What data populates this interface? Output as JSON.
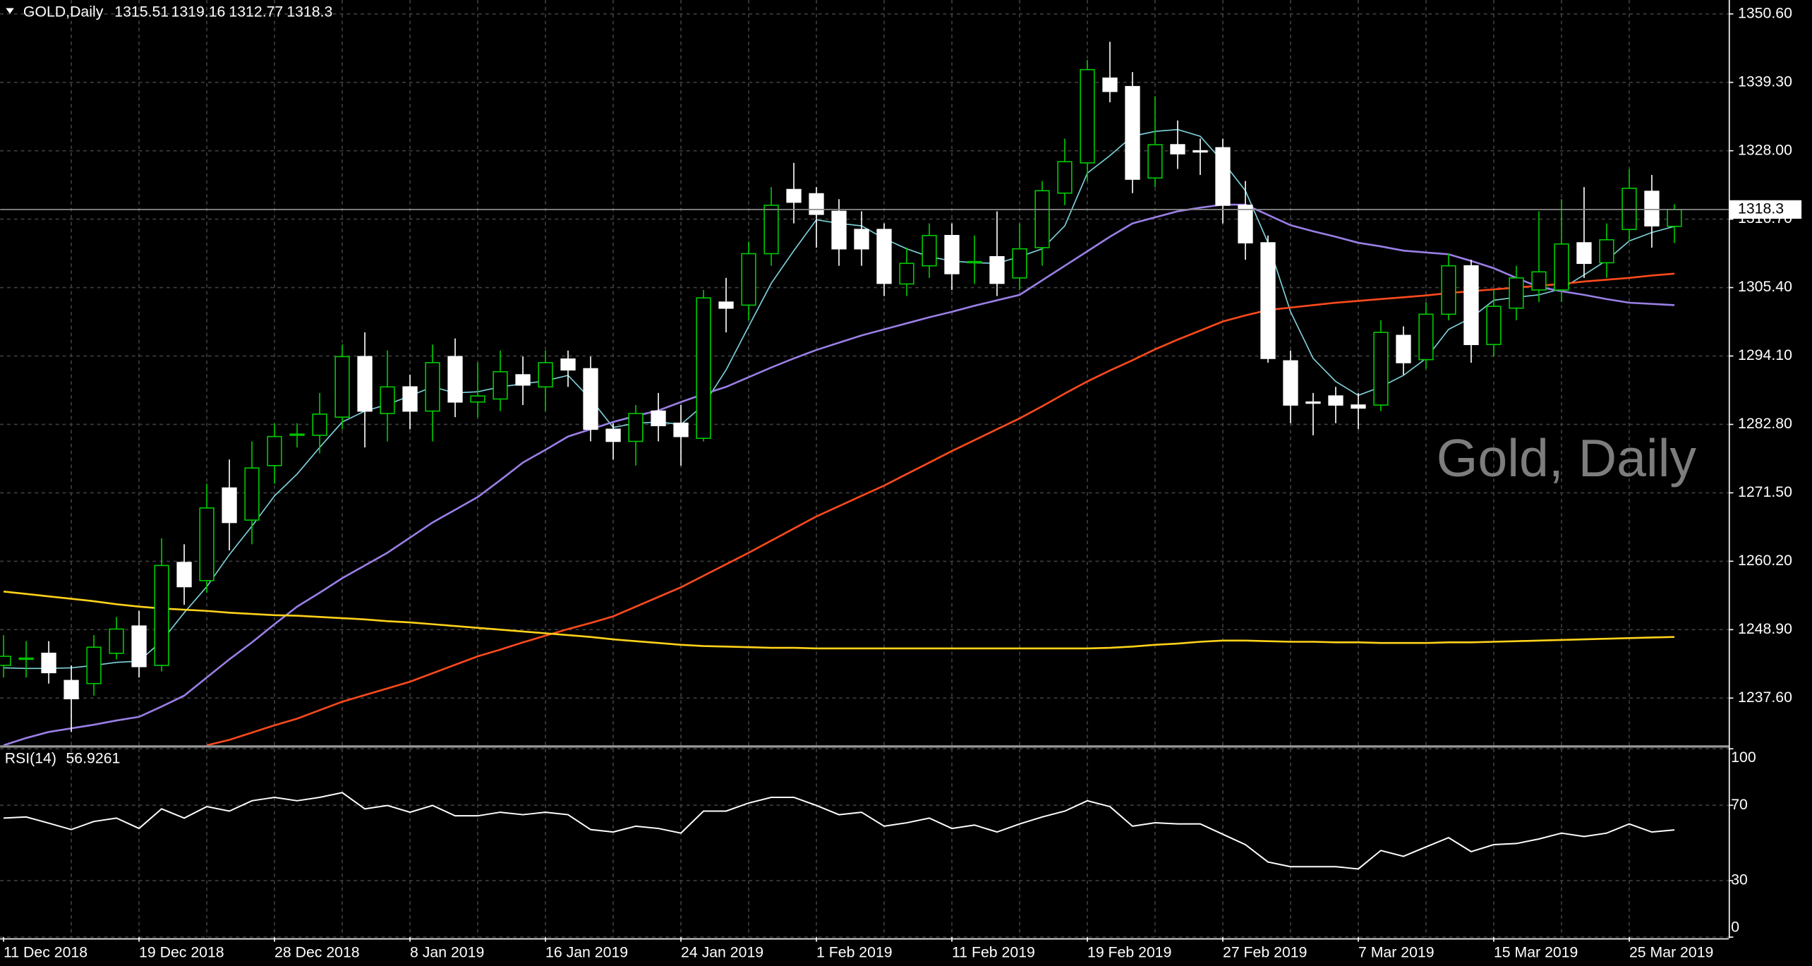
{
  "chart_data": {
    "type": "candlestick",
    "title": "GOLD,Daily",
    "watermark": "Gold, Daily",
    "categories": [
      "11 Dec 2018",
      null,
      null,
      null,
      null,
      null,
      "19 Dec 2018",
      null,
      null,
      null,
      null,
      null,
      "28 Dec 2018",
      null,
      null,
      null,
      null,
      null,
      "8 Jan 2019",
      null,
      null,
      null,
      null,
      null,
      "16 Jan 2019",
      null,
      null,
      null,
      null,
      null,
      "24 Jan 2019",
      null,
      null,
      null,
      null,
      null,
      "1 Feb 2019",
      null,
      null,
      null,
      null,
      null,
      "11 Feb 2019",
      null,
      null,
      null,
      null,
      null,
      "19 Feb 2019",
      null,
      null,
      null,
      null,
      null,
      "27 Feb 2019",
      null,
      null,
      null,
      null,
      null,
      "7 Mar 2019",
      null,
      null,
      null,
      null,
      null,
      "15 Mar 2019",
      null,
      null,
      null,
      null,
      null,
      "25 Mar 2019",
      null,
      null
    ],
    "open": [
      1243,
      1244,
      1245,
      1240.5,
      1240,
      1245,
      1249.5,
      1243,
      1260,
      1257,
      1272.3,
      1267,
      1276,
      1281,
      1281,
      1284,
      1294,
      1284.6,
      1289,
      1285,
      1294,
      1286.5,
      1287,
      1291,
      1289,
      1293.6,
      1292,
      1282,
      1280,
      1285,
      1283,
      1280.5,
      1303,
      1302.5,
      1311,
      1321.6,
      1320.9,
      1318,
      1315,
      1315,
      1306,
      1309,
      1314,
      1309.5,
      1310.5,
      1307,
      1312,
      1321,
      1326,
      1340,
      1338.6,
      1323.5,
      1329,
      1328,
      1328.5,
      1319,
      1312.8,
      1293.3,
      1286.5,
      1287.5,
      1286,
      1286,
      1297.5,
      1293.5,
      1301,
      1309,
      1296,
      1302,
      1305,
      1305,
      1312.8,
      1309.5,
      1315,
      1321.3,
      1315.51
    ],
    "high": [
      1248,
      1247,
      1247,
      1243,
      1248,
      1251,
      1252,
      1264,
      1263,
      1273,
      1277,
      1280,
      1283,
      1283,
      1288,
      1296,
      1298,
      1295,
      1291,
      1296,
      1297,
      1293,
      1295,
      1294,
      1295,
      1295,
      1294,
      1283,
      1286,
      1288,
      1286,
      1305,
      1307,
      1313,
      1322,
      1326,
      1322,
      1320,
      1318,
      1316,
      1312,
      1316,
      1316,
      1314,
      1318,
      1316,
      1323,
      1330,
      1343,
      1346,
      1341,
      1337,
      1333,
      1330,
      1330,
      1323,
      1314,
      1295,
      1288,
      1289,
      1288,
      1300,
      1299,
      1303,
      1311,
      1310,
      1305,
      1309,
      1318,
      1320,
      1322,
      1316,
      1325,
      1324,
      1319.16
    ],
    "low": [
      1241,
      1241,
      1240,
      1232,
      1238,
      1244,
      1241,
      1242,
      1253,
      1255,
      1262,
      1263,
      1273,
      1279,
      1278,
      1282,
      1279,
      1280,
      1282,
      1280,
      1284,
      1284,
      1285,
      1286,
      1285,
      1289,
      1280,
      1277,
      1276,
      1280,
      1276,
      1280,
      1298,
      1300,
      1309,
      1316,
      1312,
      1309,
      1309,
      1304,
      1304,
      1307,
      1305,
      1306,
      1304,
      1305,
      1309,
      1319,
      1323,
      1336,
      1321,
      1322,
      1325,
      1324,
      1316,
      1310,
      1293,
      1283,
      1281,
      1283,
      1282,
      1285,
      1291,
      1292,
      1300,
      1293,
      1294,
      1300,
      1303,
      1303,
      1307,
      1307,
      1313,
      1312,
      1312.77
    ],
    "close": [
      1244.5,
      1244.2,
      1241.8,
      1237.5,
      1246,
      1249,
      1242.8,
      1259.5,
      1256,
      1269,
      1266.6,
      1275.6,
      1280.8,
      1281.2,
      1284.5,
      1294,
      1285,
      1289,
      1285,
      1293,
      1286.5,
      1287.5,
      1291.5,
      1289.3,
      1293,
      1291.8,
      1282,
      1280,
      1284.6,
      1282.6,
      1280.8,
      1303.7,
      1302,
      1311,
      1319,
      1319.5,
      1317.5,
      1311.8,
      1311.8,
      1306.1,
      1309.4,
      1314,
      1307.7,
      1309.7,
      1306.1,
      1311.8,
      1321.4,
      1326.2,
      1341.4,
      1337.8,
      1323.3,
      1329,
      1327.5,
      1327.8,
      1319,
      1312.8,
      1293.7,
      1286,
      1286.3,
      1286,
      1285.5,
      1298,
      1293,
      1301,
      1309,
      1296,
      1302.3,
      1307,
      1308,
      1312.6,
      1309.4,
      1313.3,
      1321.8,
      1315.6,
      1318.3
    ],
    "up_color": "#00c800",
    "down_color": "#ffffff",
    "lines": [
      {
        "color": "#7fd3dc",
        "values": [
          1242.6,
          1242.5,
          1242.5,
          1242.6,
          1243,
          1243.5,
          1243.7,
          1247,
          1251.7,
          1256,
          1261.3,
          1266,
          1271,
          1274.6,
          1279,
          1283.2,
          1285,
          1286.1,
          1287.5,
          1289,
          1288,
          1288.2,
          1289,
          1289.5,
          1290,
          1290.9,
          1287,
          1282.3,
          1283,
          1283.2,
          1282.8,
          1286,
          1291.8,
          1299,
          1306.1,
          1311.5,
          1316.6,
          1316,
          1315.6,
          1313.5,
          1311.8,
          1310.5,
          1309.8,
          1309.5,
          1309.4,
          1310.5,
          1311.8,
          1315.6,
          1324.3,
          1327.2,
          1330.4,
          1331.2,
          1331.5,
          1330.4,
          1326.2,
          1321.4,
          1312.8,
          1301.4,
          1293.7,
          1289.9,
          1287.6,
          1289,
          1290.9,
          1293.7,
          1298.5,
          1300.4,
          1303.3,
          1303.8,
          1304.2,
          1305.2,
          1307.5,
          1309.9,
          1313.1,
          1314.5,
          1315.5
        ]
      },
      {
        "color": "#9a7fe6",
        "values": [
          1229.8,
          1231,
          1232,
          1232.6,
          1233.2,
          1233.9,
          1234.5,
          1236.2,
          1238,
          1241,
          1244,
          1246.8,
          1249.8,
          1252.7,
          1255,
          1257.4,
          1259.5,
          1261.6,
          1264.1,
          1266.6,
          1268.7,
          1270.8,
          1273.6,
          1276.5,
          1278.6,
          1280.8,
          1282,
          1283.2,
          1284.2,
          1285.1,
          1286.5,
          1287.8,
          1289,
          1290.6,
          1292.2,
          1293.7,
          1295.1,
          1296.3,
          1297.5,
          1298.5,
          1299.5,
          1300.5,
          1301.4,
          1302.4,
          1303.3,
          1304.2,
          1306.6,
          1309,
          1311.4,
          1313.8,
          1316,
          1317,
          1318,
          1318.6,
          1319.1,
          1319.1,
          1317.4,
          1315.7,
          1314.7,
          1313.8,
          1312.8,
          1312.2,
          1311.5,
          1311.2,
          1310.9,
          1309.8,
          1308.6,
          1307,
          1305.5,
          1304.8,
          1304.2,
          1303.5,
          1302.9,
          1302.7,
          1302.5
        ]
      },
      {
        "color": "#ff4a1c",
        "values": [
          null,
          null,
          null,
          null,
          null,
          null,
          null,
          null,
          null,
          1229.8,
          1230.7,
          1231.9,
          1233.1,
          1234.2,
          1235.6,
          1237,
          1238.1,
          1239.2,
          1240.3,
          1241.7,
          1243.1,
          1244.5,
          1245.6,
          1246.8,
          1247.9,
          1249,
          1250,
          1251.1,
          1252.7,
          1254.3,
          1255.9,
          1257.8,
          1259.7,
          1261.6,
          1263.6,
          1265.6,
          1267.6,
          1269.3,
          1271,
          1272.7,
          1274.6,
          1276.5,
          1278.4,
          1280.2,
          1282,
          1283.8,
          1285.8,
          1287.9,
          1289.9,
          1291.7,
          1293.4,
          1295.2,
          1296.8,
          1298.3,
          1299.8,
          1300.8,
          1301.7,
          1302.1,
          1302.5,
          1302.9,
          1303.2,
          1303.5,
          1303.8,
          1304.1,
          1304.5,
          1304.8,
          1305.1,
          1305.4,
          1305.7,
          1306,
          1306.4,
          1306.7,
          1307,
          1307.4,
          1307.7
        ]
      },
      {
        "color": "#ffd21a",
        "values": [
          1255.2,
          1254.8,
          1254.4,
          1254,
          1253.6,
          1253.1,
          1252.7,
          1252.4,
          1252.2,
          1252,
          1251.7,
          1251.5,
          1251.3,
          1251.2,
          1251,
          1250.8,
          1250.6,
          1250.3,
          1250.1,
          1249.8,
          1249.5,
          1249.2,
          1248.9,
          1248.6,
          1248.3,
          1248,
          1247.7,
          1247.3,
          1247,
          1246.7,
          1246.4,
          1246.2,
          1246.1,
          1246,
          1245.9,
          1245.9,
          1245.8,
          1245.8,
          1245.8,
          1245.8,
          1245.8,
          1245.8,
          1245.8,
          1245.8,
          1245.8,
          1245.8,
          1245.8,
          1245.8,
          1245.8,
          1245.9,
          1246.1,
          1246.4,
          1246.6,
          1246.9,
          1247.1,
          1247.1,
          1247,
          1246.9,
          1246.9,
          1246.8,
          1246.8,
          1246.7,
          1246.7,
          1246.7,
          1246.8,
          1246.8,
          1246.9,
          1247,
          1247.1,
          1247.2,
          1247.3,
          1247.4,
          1247.5,
          1247.6,
          1247.7
        ]
      }
    ],
    "ylim": [
      1229.8,
      1352.9
    ],
    "yticks": [
      {
        "value": 1350.6,
        "label": "1350.60"
      },
      {
        "value": 1339.3,
        "label": "1339.30"
      },
      {
        "value": 1328,
        "label": "1328.00"
      },
      {
        "value": 1316.7,
        "label": "1316.70"
      },
      {
        "value": 1305.4,
        "label": "1305.40"
      },
      {
        "value": 1294.1,
        "label": "1294.10"
      },
      {
        "value": 1282.8,
        "label": "1282.80"
      },
      {
        "value": 1271.5,
        "label": "1271.50"
      },
      {
        "value": 1260.2,
        "label": "1260.20"
      },
      {
        "value": 1248.9,
        "label": "1248.90"
      },
      {
        "value": 1237.6,
        "label": "1237.60"
      }
    ],
    "grid": true,
    "rsi": {
      "name": "RSI(14)",
      "color": "#ffffff",
      "ylim": [
        0,
        100
      ],
      "yticks": [
        100,
        70,
        30,
        0
      ],
      "values": [
        63.2,
        63.8,
        60.5,
        57.1,
        61.4,
        63.2,
        57.7,
        68.1,
        63.2,
        69.3,
        66.9,
        72.4,
        74.2,
        72.4,
        74.2,
        76.7,
        68.1,
        69.9,
        66.3,
        69.9,
        64.4,
        64.4,
        66.3,
        65,
        66.3,
        65,
        57.1,
        55.8,
        58.9,
        57.7,
        55.2,
        66.9,
        66.9,
        71.2,
        74.2,
        74.2,
        69.9,
        65,
        66.3,
        58.9,
        60.7,
        63.2,
        57.7,
        59.5,
        55.8,
        60.1,
        63.8,
        66.9,
        72.4,
        69.3,
        58.9,
        60.7,
        60.1,
        60.1,
        54.6,
        49.1,
        39.9,
        37.4,
        37.4,
        37.4,
        36.2,
        46,
        42.9,
        47.9,
        52.8,
        45.4,
        49.1,
        49.7,
        52.1,
        55.2,
        53.4,
        55.2,
        60.1,
        55.8,
        56.9261
      ]
    }
  }
}
